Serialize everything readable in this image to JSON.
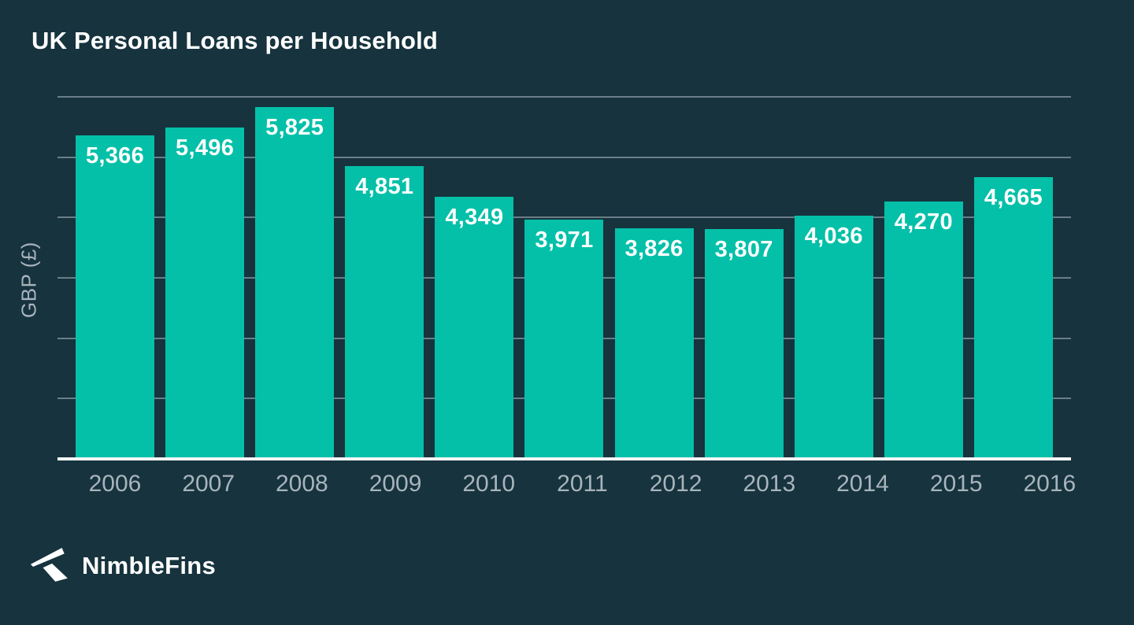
{
  "title": "UK Personal Loans per Household",
  "brand": {
    "name": "NimbleFins",
    "icon": "nimblefins-arrow-icon"
  },
  "colors": {
    "background": "#16333E",
    "bar": "#04C0A8",
    "gridline": "#6B7E87",
    "axis_line": "#F7F7F7",
    "tick_label": "#A8B4BB",
    "value_label": "#FFFFFF",
    "title": "#FFFFFF"
  },
  "chart_data": {
    "type": "bar",
    "title": "UK Personal Loans per Household",
    "categories": [
      "2006",
      "2007",
      "2008",
      "2009",
      "2010",
      "2011",
      "2012",
      "2013",
      "2014",
      "2015",
      "2016"
    ],
    "values": [
      5366,
      5496,
      5825,
      4851,
      4349,
      3971,
      3826,
      3807,
      4036,
      4270,
      4665
    ],
    "value_labels": [
      "5,366",
      "5,496",
      "5,825",
      "4,851",
      "4,349",
      "3,971",
      "3,826",
      "3,807",
      "4,036",
      "4,270",
      "4,665"
    ],
    "xlabel": "",
    "ylabel": "GBP (£)",
    "ylim": [
      0,
      6000
    ],
    "gridline_interval": 1000,
    "grid": true,
    "y_tick_labels_visible": false,
    "legend": "none",
    "bar_label_position": "inside-top"
  }
}
